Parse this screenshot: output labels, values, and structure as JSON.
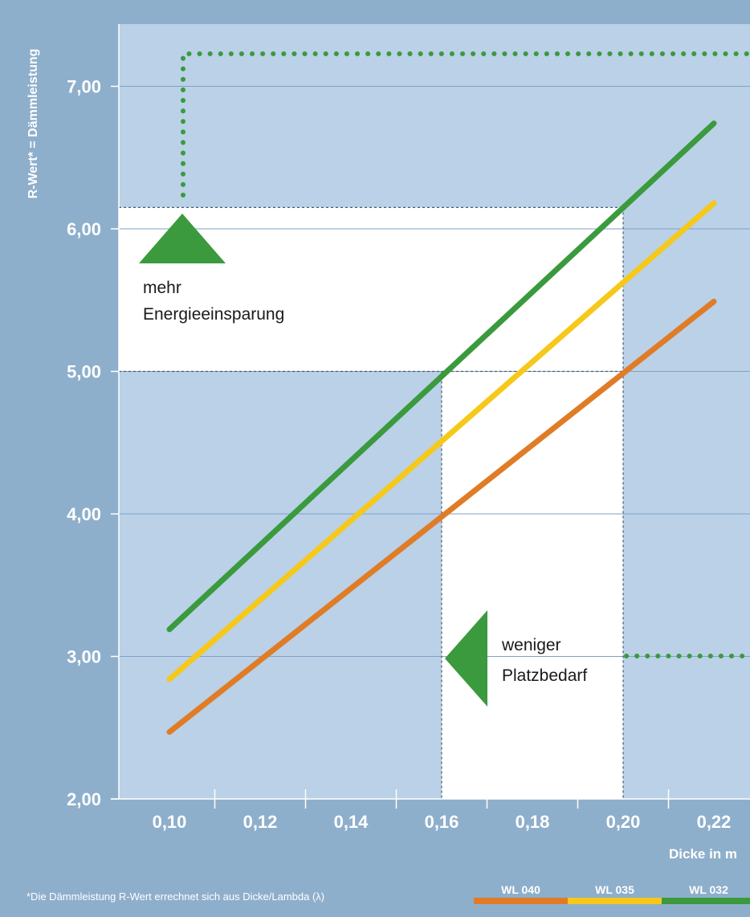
{
  "colors": {
    "background": "#8eafcb",
    "plot_area": "#bad1e7",
    "highlight": "#ffffff",
    "gridline": "#7ea2c4",
    "accent_green": "#3a9a3d",
    "wl_040": "#e07c26",
    "wl_035": "#f6c81a",
    "wl_032": "#3a9a3d"
  },
  "chart_data": {
    "type": "line",
    "ylabel": "R-Wert* = Dämmleistung",
    "xlabel": "Dicke in m",
    "ylim": [
      2.0,
      7.0
    ],
    "y_ticks": [
      "2,00",
      "3,00",
      "4,00",
      "5,00",
      "6,00",
      "7,00"
    ],
    "x_ticks": [
      "0,10",
      "0,12",
      "0,14",
      "0,16",
      "0,18",
      "0,20",
      "0,22"
    ],
    "grid": true,
    "series": [
      {
        "name": "WL 040",
        "color": "#e07c26",
        "points": [
          [
            0.1,
            2.47
          ],
          [
            0.22,
            5.49
          ]
        ]
      },
      {
        "name": "WL 035",
        "color": "#f6c81a",
        "points": [
          [
            0.1,
            2.84
          ],
          [
            0.22,
            6.18
          ]
        ]
      },
      {
        "name": "WL 032",
        "color": "#3a9a3d",
        "points": [
          [
            0.1,
            3.19
          ],
          [
            0.22,
            6.74
          ]
        ]
      }
    ],
    "highlight_vertical": {
      "x_from": 0.16,
      "x_to": 0.2,
      "y_from": 2.0,
      "y_to": 5.0
    },
    "highlight_horizontal": {
      "x_from": 0.1,
      "x_to": 0.2,
      "y_from": 5.0,
      "y_to": 6.15
    },
    "annotations": {
      "up_label_line1": "mehr",
      "up_label_line2": "Energieeinsparung",
      "left_label_line1": "weniger",
      "left_label_line2": "Platzbedarf"
    },
    "footnote": "*Die Dämmleistung R-Wert errechnet sich aus Dicke/Lambda (λ)",
    "legend": {
      "position": "bottom-right",
      "items": [
        {
          "label": "WL 040",
          "color": "#e07c26"
        },
        {
          "label": "WL 035",
          "color": "#f6c81a"
        },
        {
          "label": "WL 032",
          "color": "#3a9a3d"
        }
      ]
    }
  }
}
